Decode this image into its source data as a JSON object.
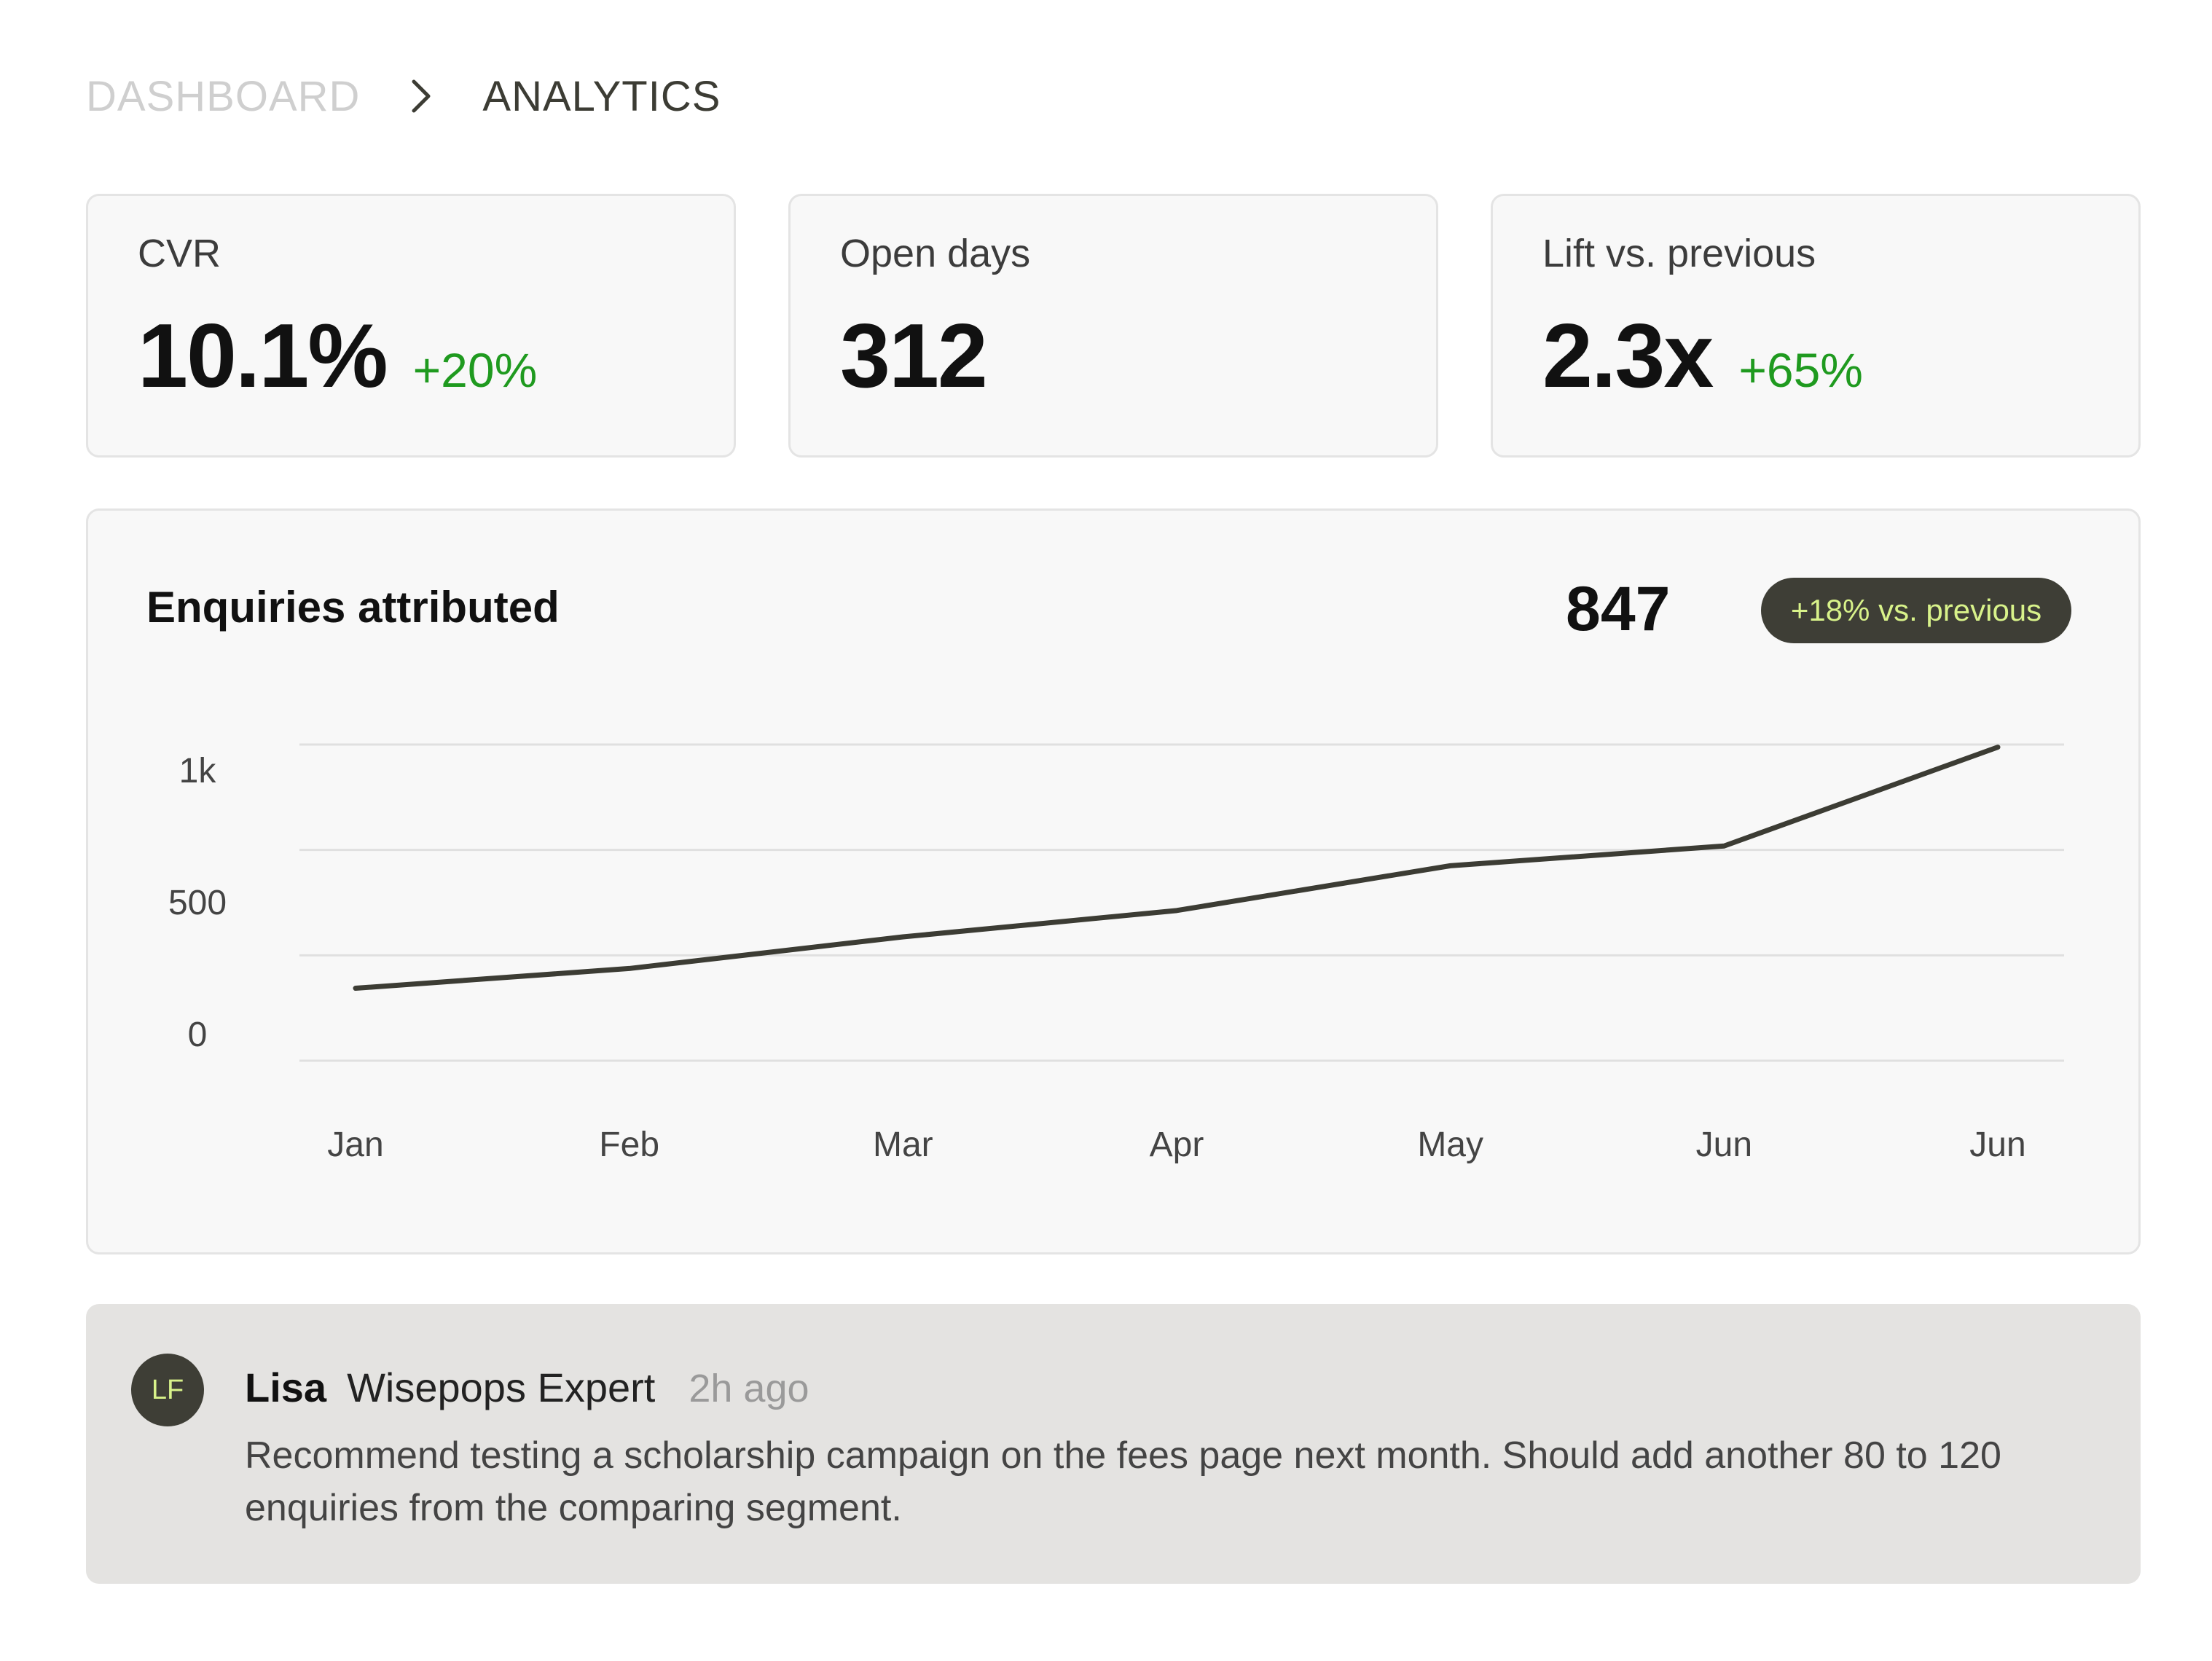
{
  "breadcrumb": {
    "root": "DASHBOARD",
    "current": "ANALYTICS",
    "separator_icon": "chevron-right-icon"
  },
  "kpis": [
    {
      "label": "CVR",
      "value": "10.1%",
      "delta": "+20%"
    },
    {
      "label": "Open days",
      "value": "312",
      "delta": ""
    },
    {
      "label": "Lift vs. previous",
      "value": "2.3x",
      "delta": "+65%"
    }
  ],
  "chart": {
    "title": "Enquiries attributed",
    "total": "847",
    "badge": "+18% vs. previous"
  },
  "chart_data": {
    "type": "line",
    "title": "Enquiries attributed",
    "categories": [
      "Jan",
      "Feb",
      "Mar",
      "Apr",
      "May",
      "Jun",
      "Jun"
    ],
    "series": [
      {
        "values": [
          175,
          250,
          370,
          470,
          640,
          715,
          1090
        ]
      }
    ],
    "ytick_values": [
      0,
      500,
      1000
    ],
    "ytick_labels": [
      "0",
      "500",
      "1k"
    ],
    "ylim": [
      -100,
      1100
    ],
    "grid": true,
    "line_color": "#3c3c34"
  },
  "comment": {
    "initials": "LF",
    "author": "Lisa",
    "role": "Wisepops Expert",
    "time": "2h ago",
    "body": "Recommend testing a scholarship campaign on the fees page next month. Should add another 80 to 120 enquiries from the comparing segment."
  },
  "colors": {
    "positive": "#1f9a1f",
    "dark": "#3e3e36",
    "accent": "#d8f28a",
    "card_bg": "#f8f8f8",
    "comment_bg": "#e4e3e1"
  }
}
